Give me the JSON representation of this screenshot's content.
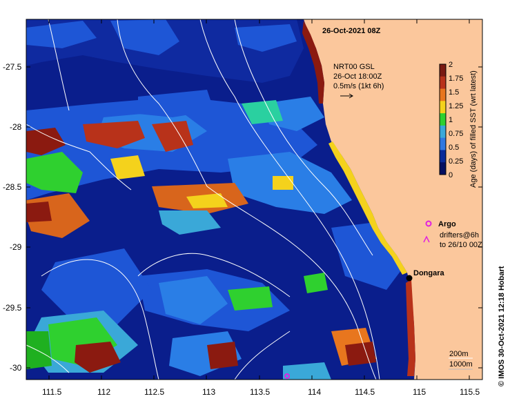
{
  "map": {
    "title": "26-Oct-2021 08Z",
    "lat_ticks": [
      "-27.5",
      "-28",
      "-28.5",
      "-29",
      "-29.5",
      "-30"
    ],
    "lon_ticks": [
      "111.5",
      "112",
      "112.5",
      "113",
      "113.5",
      "114",
      "114.5",
      "115",
      "115.5"
    ],
    "current_legend": {
      "line1": "NRT00 GSL",
      "line2": "26-Oct 18:00Z",
      "line3": "0.5m/s (1kt 6h)"
    },
    "colorbar": {
      "label": "Age (days) of filled SST (wrt latest)",
      "ticks": [
        "2",
        "1.75",
        "1.5",
        "1.25",
        "1",
        "0.75",
        "0.5",
        "0.25",
        "0"
      ],
      "colors": [
        "#7a1a12",
        "#b8321a",
        "#e8761e",
        "#f4d21c",
        "#2fd02f",
        "#3aa8d8",
        "#2f78e0",
        "#0a2a98",
        "#050f60"
      ]
    },
    "argo_label": "Argo",
    "drifters_line1": "drifters@6h",
    "drifters_line2": "to 26/10 00Z",
    "town": "Dongara",
    "contours_line1": "200m",
    "contours_line2": "1000m",
    "credit": "© IMOS 30-Oct-2021 12:18 Hobart",
    "colors": {
      "land": "#fbc79c",
      "ocean_deep": "#0a1e8c",
      "ocean_mid": "#1e56d6",
      "ocean_light": "#2a7ee6",
      "argo": "#e020e0"
    }
  }
}
